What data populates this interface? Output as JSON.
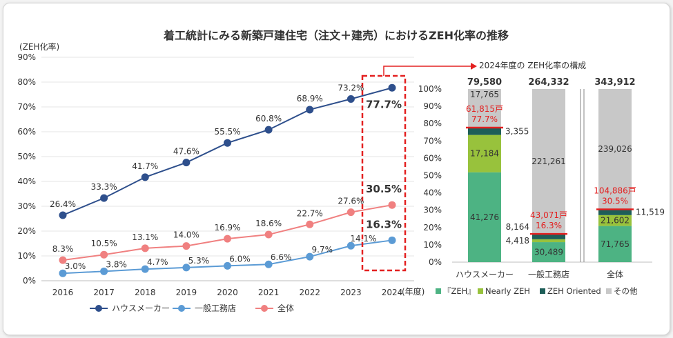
{
  "title": "着工統計にみる新築戸建住宅（注文＋建売）におけるZEH化率の推移",
  "chart_data": [
    {
      "type": "line",
      "ylabel": "(ZEH化率)",
      "xlabel": "(年度)",
      "x": [
        "2016",
        "2017",
        "2018",
        "2019",
        "2020",
        "2021",
        "2022",
        "2023",
        "2024"
      ],
      "ylim": [
        0,
        90
      ],
      "yticks": [
        "0%",
        "10%",
        "20%",
        "30%",
        "40%",
        "50%",
        "60%",
        "70%",
        "80%",
        "90%"
      ],
      "grid": true,
      "legend_position": "bottom",
      "series": [
        {
          "name": "ハウスメーカー",
          "color": "#2e4f8c",
          "values": [
            26.4,
            33.3,
            41.7,
            47.6,
            55.5,
            60.8,
            68.9,
            73.2,
            77.7
          ],
          "labels": [
            "26.4%",
            "33.3%",
            "41.7%",
            "47.6%",
            "55.5%",
            "60.8%",
            "68.9%",
            "73.2%",
            "77.7%"
          ]
        },
        {
          "name": "一般工務店",
          "color": "#5b9bd5",
          "values": [
            3.0,
            3.8,
            4.7,
            5.3,
            6.0,
            6.6,
            9.7,
            14.1,
            16.3
          ],
          "labels": [
            "3.0%",
            "3.8%",
            "4.7%",
            "5.3%",
            "6.0%",
            "6.6%",
            "9.7%",
            "14.1%",
            "16.3%"
          ]
        },
        {
          "name": "全体",
          "color": "#f08080",
          "values": [
            8.3,
            10.5,
            13.1,
            14.0,
            16.9,
            18.6,
            22.7,
            27.6,
            30.5
          ],
          "labels": [
            "8.3%",
            "10.5%",
            "13.1%",
            "14.0%",
            "16.9%",
            "18.6%",
            "22.7%",
            "27.6%",
            "30.5%"
          ]
        }
      ]
    },
    {
      "type": "bar",
      "stacked": "percent",
      "title": "2024年度の ZEH化率の構成",
      "categories": [
        "ハウスメーカー",
        "一般工務店",
        "全体"
      ],
      "totals": [
        "79,580",
        "264,332",
        "343,912"
      ],
      "ylim": [
        0,
        100
      ],
      "yticks": [
        "0%",
        "10%",
        "20%",
        "30%",
        "40%",
        "50%",
        "60%",
        "70%",
        "80%",
        "90%",
        "100%"
      ],
      "legend_position": "bottom",
      "series": [
        {
          "name": "『ZEH』",
          "color": "#4db383",
          "values": [
            41276,
            30489,
            71765
          ],
          "labels": [
            "41,276",
            "30,489",
            "71,765"
          ]
        },
        {
          "name": "Nearly ZEH",
          "color": "#98c23c",
          "values": [
            17184,
            4418,
            21602
          ],
          "labels": [
            "17,184",
            "4,418",
            "21,602"
          ]
        },
        {
          "name": "ZEH Oriented",
          "color": "#1e5e58",
          "values": [
            3355,
            8164,
            11519
          ],
          "labels": [
            "3,355",
            "8,164",
            "11,519"
          ]
        },
        {
          "name": "その他",
          "color": "#c8c8c8",
          "values": [
            17765,
            221261,
            239026
          ],
          "labels": [
            "17,765",
            "221,261",
            "239,026"
          ]
        }
      ],
      "zeh_annotations": [
        {
          "count": "61,815戸",
          "rate": "77.7%"
        },
        {
          "count": "43,071戸",
          "rate": "16.3%"
        },
        {
          "count": "104,886戸",
          "rate": "30.5%"
        }
      ],
      "annotation_color": "#e32020"
    }
  ]
}
